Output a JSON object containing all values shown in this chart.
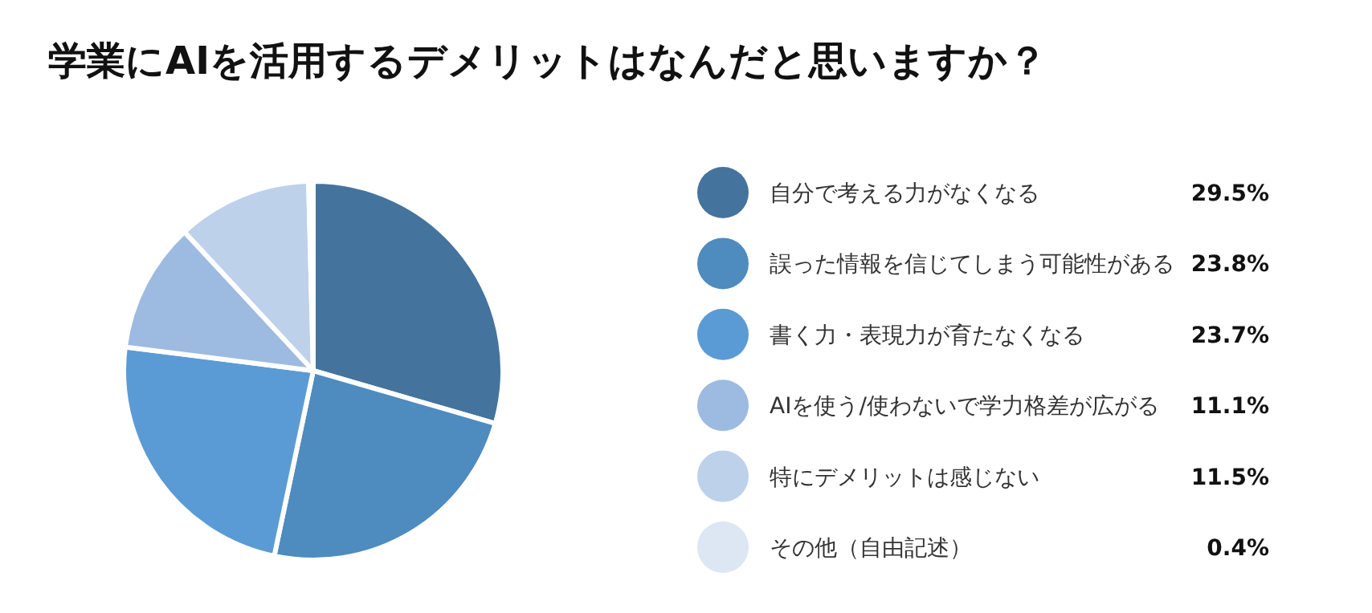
{
  "chart_data": {
    "type": "pie",
    "title": "学業にAIを活用するデメリットはなんだと思いますか？",
    "categories": [
      "自分で考える力がなくなる",
      "誤った情報を信じてしまう可能性がある",
      "書く力・表現力が育たなくなる",
      "AIを使う/使わないで学力格差が広がる",
      "特にデメリットは感じない",
      "その他（自由記述）"
    ],
    "values": [
      29.5,
      23.8,
      23.7,
      11.1,
      11.5,
      0.4
    ],
    "colors": [
      "#44749d",
      "#4e8bbf",
      "#5b9bd5",
      "#9dbbe0",
      "#bdd1ea",
      "#dde6f3"
    ],
    "value_labels": [
      "29.5%",
      "23.8%",
      "23.7%",
      "11.1%",
      "11.5%",
      "0.4%"
    ],
    "legend": "right"
  }
}
